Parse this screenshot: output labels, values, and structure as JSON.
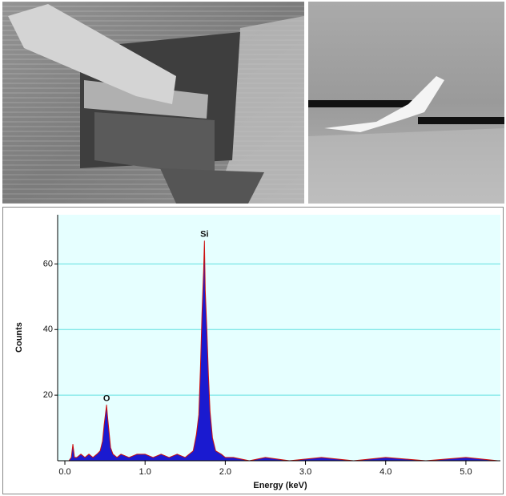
{
  "chart_data": {
    "type": "area",
    "xlabel": "Energy (keV)",
    "ylabel": "Counts",
    "x": [
      0.05,
      0.08,
      0.1,
      0.12,
      0.15,
      0.2,
      0.25,
      0.3,
      0.35,
      0.4,
      0.44,
      0.47,
      0.49,
      0.51,
      0.52,
      0.53,
      0.55,
      0.57,
      0.6,
      0.65,
      0.7,
      0.8,
      0.9,
      1.0,
      1.1,
      1.2,
      1.3,
      1.4,
      1.5,
      1.6,
      1.64,
      1.67,
      1.69,
      1.71,
      1.73,
      1.74,
      1.75,
      1.77,
      1.79,
      1.81,
      1.84,
      1.88,
      1.95,
      2.0,
      2.1,
      2.3,
      2.5,
      2.8,
      3.2,
      3.6,
      4.0,
      4.5,
      5.0,
      5.4
    ],
    "series": [
      {
        "name": "Counts",
        "color": "#1a1ad0",
        "edge_color": "#cc1010",
        "values": [
          0,
          1,
          5,
          1,
          1,
          2,
          1,
          2,
          1,
          2,
          3,
          6,
          11,
          15,
          17,
          14,
          9,
          4,
          2,
          1,
          2,
          1,
          2,
          2,
          1,
          2,
          1,
          2,
          1,
          3,
          8,
          14,
          28,
          45,
          58,
          67,
          52,
          40,
          26,
          15,
          7,
          3,
          2,
          1,
          1,
          0,
          1,
          0,
          1,
          0,
          1,
          0,
          1,
          0
        ]
      }
    ],
    "annotations": [
      {
        "text": "O",
        "x": 0.52,
        "y": 17
      },
      {
        "text": "Si",
        "x": 1.74,
        "y": 67
      }
    ],
    "xlim": [
      -0.09,
      5.43
    ],
    "ylim": [
      0,
      75
    ],
    "xticks": [
      {
        "value": 0,
        "label": "0.0"
      },
      {
        "value": 1,
        "label": "1.0"
      },
      {
        "value": 2,
        "label": "2.0"
      },
      {
        "value": 3,
        "label": "3.0"
      },
      {
        "value": 4,
        "label": "4.0"
      },
      {
        "value": 5,
        "label": "5.0"
      }
    ],
    "yticks": [
      20,
      40,
      60
    ],
    "grid": true,
    "grid_color": "#5fe0e0",
    "background": "#e6ffff"
  }
}
